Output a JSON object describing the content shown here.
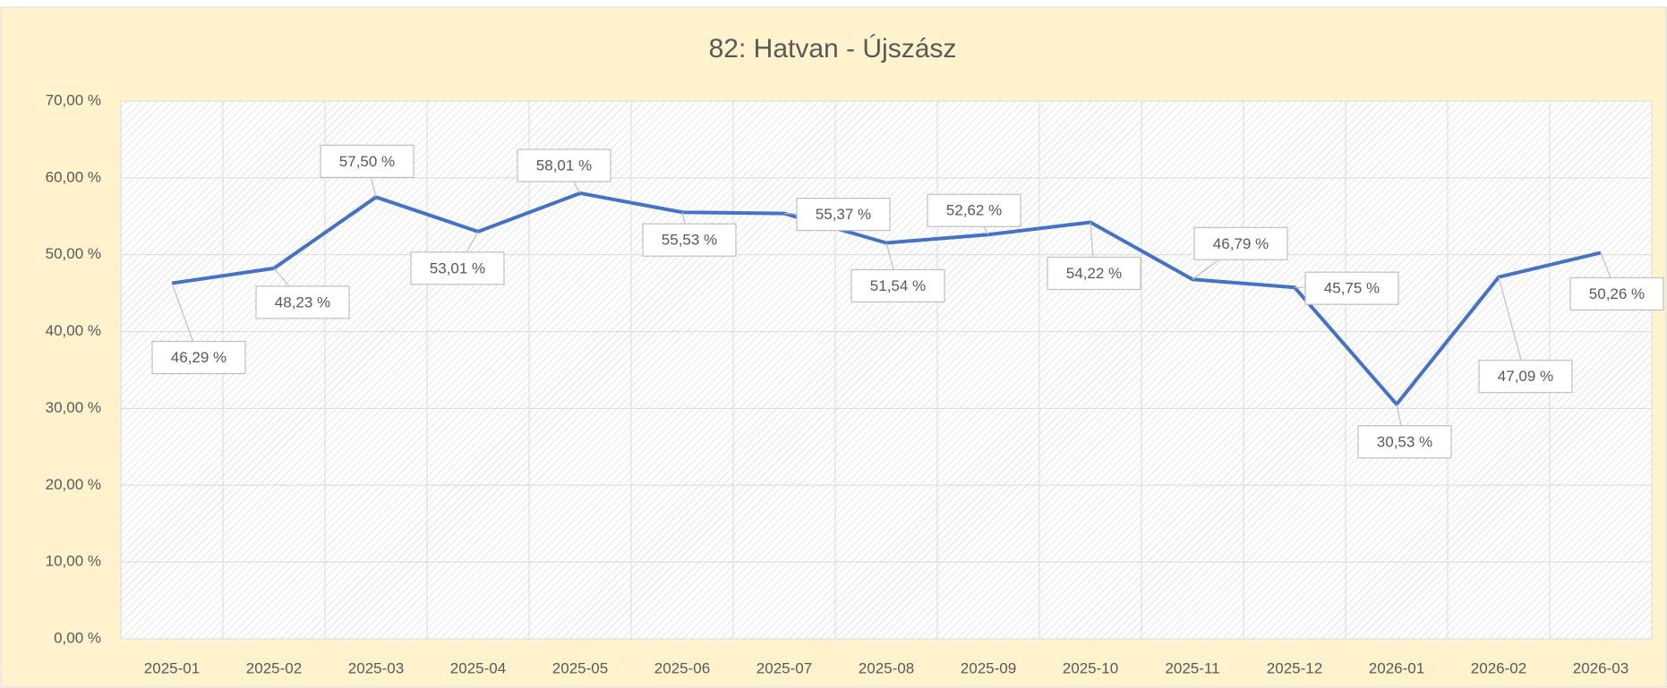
{
  "chart_data": {
    "type": "line",
    "title": "82: Hatvan - Újszász",
    "categories": [
      "2025-01",
      "2025-02",
      "2025-03",
      "2025-04",
      "2025-05",
      "2025-06",
      "2025-07",
      "2025-08",
      "2025-09",
      "2025-10",
      "2025-11",
      "2025-12",
      "2026-01",
      "2026-02",
      "2026-03"
    ],
    "series": [
      {
        "name": "82: Hatvan - Újszász",
        "color": "#4472c4",
        "values": [
          46.29,
          48.23,
          57.5,
          53.01,
          58.01,
          55.53,
          55.37,
          51.54,
          52.62,
          54.22,
          46.79,
          45.75,
          30.53,
          47.09,
          50.26
        ],
        "value_labels": [
          "46,29 %",
          "48,23 %",
          "57,50 %",
          "53,01 %",
          "58,01 %",
          "55,53 %",
          "55,37 %",
          "51,54 %",
          "52,62 %",
          "54,22 %",
          "46,79 %",
          "45,75 %",
          "30,53 %",
          "47,09 %",
          "50,26 %"
        ]
      }
    ],
    "ylim": [
      0,
      70
    ],
    "yticks": [
      {
        "value": 0,
        "label": "0,00 %"
      },
      {
        "value": 10,
        "label": "10,00 %"
      },
      {
        "value": 20,
        "label": "20,00 %"
      },
      {
        "value": 30,
        "label": "30,00 %"
      },
      {
        "value": 40,
        "label": "40,00 %"
      },
      {
        "value": 50,
        "label": "50,00 %"
      },
      {
        "value": 60,
        "label": "60,00 %"
      },
      {
        "value": 70,
        "label": "70,00 %"
      }
    ],
    "grid": true
  }
}
